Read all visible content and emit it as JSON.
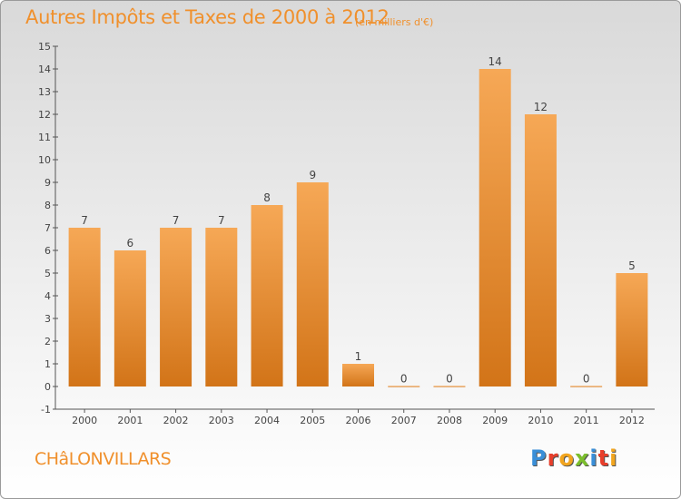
{
  "title": "Autres Impôts et Taxes de 2000 à 2012",
  "subtitle": "(en milliers d'€)",
  "commune": "CHâLONVILLARS",
  "logo": {
    "text": "Proxiti",
    "letters": [
      {
        "ch": "P",
        "color": "#3a8fd8"
      },
      {
        "ch": "r",
        "color": "#e83e2b"
      },
      {
        "ch": "o",
        "color": "#f2a51f"
      },
      {
        "ch": "x",
        "color": "#7cbf2e"
      },
      {
        "ch": "i",
        "color": "#3a8fd8"
      },
      {
        "ch": "t",
        "color": "#e83e2b"
      },
      {
        "ch": "i",
        "color": "#f2a51f"
      }
    ]
  },
  "colors": {
    "accent": "#f0902c",
    "bar_light": "#f6a856",
    "bar_dark": "#d27418",
    "axis": "#555555",
    "grid": "#cfcfcf"
  },
  "chart_data": {
    "type": "bar",
    "title": "Autres Impôts et Taxes de 2000 à 2012",
    "subtitle": "(en milliers d'€)",
    "categories": [
      "2000",
      "2001",
      "2002",
      "2003",
      "2004",
      "2005",
      "2006",
      "2007",
      "2008",
      "2009",
      "2010",
      "2011",
      "2012"
    ],
    "values": [
      7,
      6,
      7,
      7,
      8,
      9,
      1,
      0,
      0,
      14,
      12,
      0,
      5
    ],
    "data_labels": [
      "7",
      "6",
      "7",
      "7",
      "8",
      "9",
      "1",
      "0",
      "0",
      "14",
      "12",
      "0",
      "5"
    ],
    "yticks": [
      "-1",
      "0",
      "1",
      "2",
      "3",
      "4",
      "5",
      "6",
      "7",
      "8",
      "9",
      "10",
      "11",
      "12",
      "13",
      "14",
      "15"
    ],
    "ylim": [
      -1,
      15
    ],
    "grid": false
  }
}
